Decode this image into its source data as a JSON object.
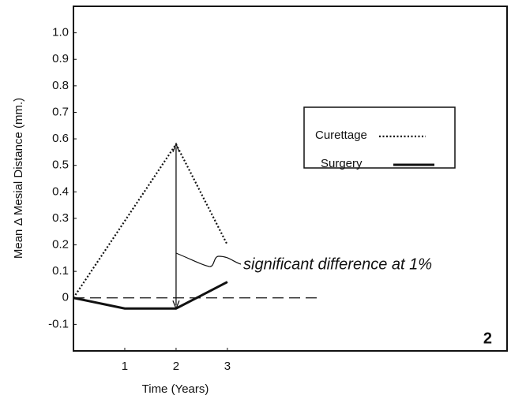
{
  "chart_data": {
    "type": "line",
    "x_label": "Time (Years)",
    "y_label": "Mean Δ Mesial Distance (mm.)",
    "xlim": [
      0,
      8.45
    ],
    "xticks": [
      1,
      2,
      3
    ],
    "ylim": [
      -0.2,
      1.1
    ],
    "yticks": [
      {
        "value": 1,
        "label": "1.0"
      },
      0.9,
      0.8,
      0.7,
      0.6,
      0.5,
      0.4,
      0.3,
      0.2,
      0.1,
      0,
      -0.1
    ],
    "reference_line": 0,
    "series": [
      {
        "name": "Curettage",
        "color": "#111111",
        "style": "dotted",
        "x": [
          0,
          2,
          3
        ],
        "values": [
          0,
          0.58,
          0.2
        ]
      },
      {
        "name": "Surgery",
        "color": "#111111",
        "style": "solid",
        "x": [
          0,
          1,
          2,
          3
        ],
        "values": [
          0,
          -0.04,
          -0.04,
          0.06
        ]
      }
    ],
    "annotation": "significant difference at 1%",
    "figure_label": "2"
  }
}
